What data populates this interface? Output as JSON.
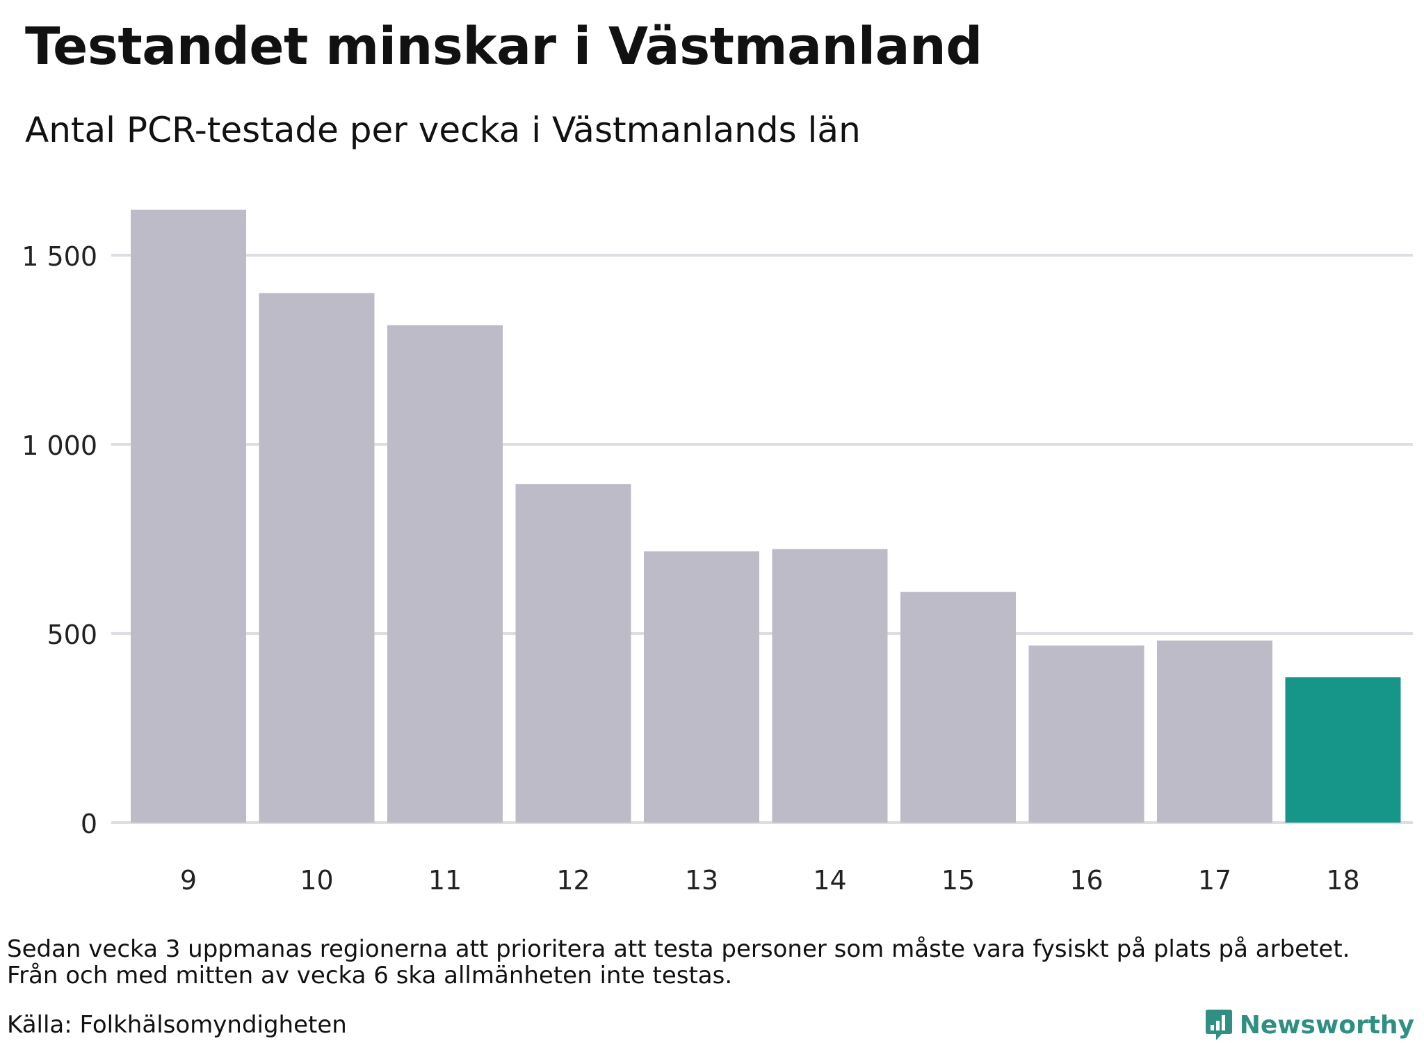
{
  "title": "Testandet minskar i Västmanland",
  "subtitle": "Antal PCR-testade per vecka i Västmanlands län",
  "note_lines": [
    "Sedan vecka 3 uppmanas regionerna att prioritera att testa personer som måste vara fysiskt på plats på arbetet.",
    "Från och med mitten av vecka 6 ska allmänheten inte testas."
  ],
  "source": "Källa: Folkhälsomyndigheten",
  "brand": "Newsworthy",
  "colors": {
    "bar": "#bdbbc8",
    "highlight": "#169688",
    "grid": "#dedde3",
    "brand": "#2f8f83"
  },
  "chart_data": {
    "type": "bar",
    "categories": [
      "9",
      "10",
      "11",
      "12",
      "13",
      "14",
      "15",
      "16",
      "17",
      "18"
    ],
    "values": [
      1620,
      1400,
      1315,
      895,
      717,
      723,
      610,
      468,
      481,
      384
    ],
    "highlight_index": 9,
    "ylim": [
      0,
      1650
    ],
    "yticks": [
      0,
      500,
      1000,
      1500
    ],
    "ytick_labels": [
      "0",
      "500",
      "1 000",
      "1 500"
    ],
    "grid": true,
    "legend": "none",
    "xlabel": "",
    "ylabel": ""
  }
}
